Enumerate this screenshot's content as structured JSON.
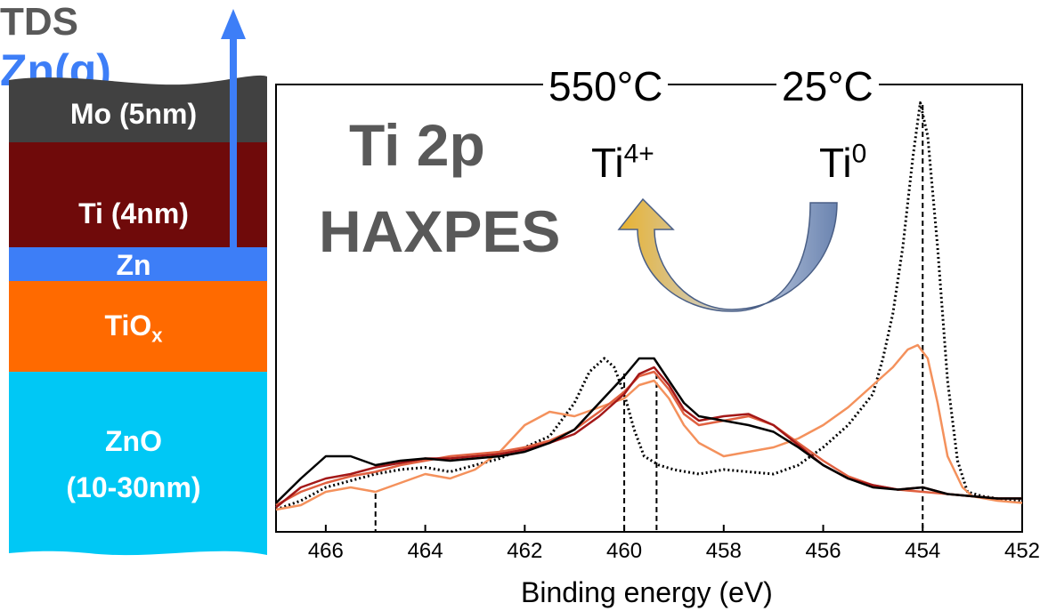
{
  "stack": {
    "tds_label": "TDS",
    "gas_label": "Zn(g)",
    "layers": [
      {
        "label": "Mo (5nm)",
        "color": "#414141"
      },
      {
        "label": "Ti (4nm)",
        "color": "#6f0a0a"
      },
      {
        "label": "Zn",
        "color": "#3d7ef7"
      },
      {
        "label": "TiO",
        "sub": "x",
        "color": "#ff6a00"
      },
      {
        "label": "ZnO",
        "label2": "(10-30nm)",
        "color": "#00c8f5"
      }
    ]
  },
  "annotations": {
    "title1": "Ti 2p",
    "title2": "HAXPES",
    "temp_left": "550°C",
    "temp_right": "25°C",
    "ion_left": "Ti",
    "ion_left_sup": "4+",
    "ion_right": "Ti",
    "ion_right_sup": "0"
  },
  "chart_data": {
    "type": "line",
    "title": "Ti 2p HAXPES",
    "xlabel": "Binding energy (eV)",
    "ylabel": "",
    "xlim": [
      467,
      452
    ],
    "x_reversed": true,
    "xticks": [
      466,
      464,
      462,
      460,
      458,
      456,
      454,
      452
    ],
    "reference_lines": [
      465,
      460,
      459.35,
      454
    ],
    "series": [
      {
        "color": "#000000",
        "style": "dotted",
        "x": [
          467,
          466.5,
          466,
          465.5,
          465,
          464.5,
          464,
          463.5,
          463,
          462.5,
          462,
          461.5,
          461,
          460.7,
          460.4,
          460.2,
          460.0,
          459.8,
          459.6,
          459.3,
          459,
          458.5,
          458,
          457.5,
          457,
          456.5,
          456,
          455.5,
          455,
          454.8,
          454.6,
          454.4,
          454.2,
          454.05,
          453.9,
          453.7,
          453.5,
          453.3,
          453.1,
          452.8,
          452.5,
          452
        ],
        "y": [
          0.02,
          0.06,
          0.12,
          0.15,
          0.18,
          0.2,
          0.21,
          0.19,
          0.22,
          0.25,
          0.3,
          0.35,
          0.5,
          0.64,
          0.7,
          0.66,
          0.54,
          0.38,
          0.26,
          0.22,
          0.2,
          0.18,
          0.2,
          0.19,
          0.18,
          0.22,
          0.3,
          0.4,
          0.54,
          0.7,
          0.9,
          1.2,
          1.6,
          1.85,
          1.7,
          1.2,
          0.6,
          0.24,
          0.1,
          0.08,
          0.07,
          0.06
        ]
      },
      {
        "color": "#f4915c",
        "style": "solid",
        "x": [
          467,
          466.5,
          466,
          465.5,
          465,
          464.5,
          464,
          463.5,
          463,
          462.5,
          462,
          461.5,
          461,
          460.5,
          460,
          459.7,
          459.4,
          459.1,
          458.8,
          458.5,
          458,
          457.5,
          457,
          456.5,
          456,
          455.5,
          455,
          454.6,
          454.3,
          454.1,
          453.9,
          453.7,
          453.5,
          453.2,
          453,
          452.5,
          452
        ],
        "y": [
          0.02,
          0.04,
          0.1,
          0.12,
          0.1,
          0.14,
          0.18,
          0.16,
          0.2,
          0.28,
          0.4,
          0.46,
          0.44,
          0.48,
          0.52,
          0.58,
          0.6,
          0.52,
          0.4,
          0.32,
          0.26,
          0.28,
          0.3,
          0.34,
          0.4,
          0.48,
          0.58,
          0.66,
          0.74,
          0.76,
          0.7,
          0.5,
          0.26,
          0.12,
          0.08,
          0.06,
          0.05
        ]
      },
      {
        "color": "#e06040",
        "style": "solid",
        "x": [
          467,
          466.5,
          466,
          465.5,
          465,
          464.5,
          464,
          463.5,
          463,
          462.5,
          462,
          461.5,
          461,
          460.5,
          460,
          459.7,
          459.4,
          459.1,
          458.8,
          458.5,
          458,
          457.5,
          457,
          456.5,
          456,
          455.5,
          455,
          454.5,
          454,
          453.5,
          453,
          452.5,
          452
        ],
        "y": [
          0.04,
          0.1,
          0.14,
          0.17,
          0.19,
          0.22,
          0.24,
          0.26,
          0.27,
          0.28,
          0.3,
          0.33,
          0.38,
          0.46,
          0.55,
          0.62,
          0.64,
          0.56,
          0.45,
          0.4,
          0.42,
          0.44,
          0.4,
          0.32,
          0.24,
          0.17,
          0.13,
          0.11,
          0.1,
          0.09,
          0.08,
          0.07,
          0.07
        ]
      },
      {
        "color": "#a31818",
        "style": "solid",
        "x": [
          467,
          466.5,
          466,
          465.5,
          465,
          464.5,
          464,
          463.5,
          463,
          462.5,
          462,
          461.5,
          461,
          460.5,
          460,
          459.7,
          459.4,
          459.1,
          458.8,
          458.5,
          458,
          457.5,
          457,
          456.5,
          456,
          455.5,
          455,
          454.5,
          454,
          453.5,
          453,
          452.5,
          452
        ],
        "y": [
          0.03,
          0.12,
          0.16,
          0.18,
          0.21,
          0.23,
          0.25,
          0.25,
          0.26,
          0.27,
          0.29,
          0.32,
          0.36,
          0.44,
          0.54,
          0.63,
          0.66,
          0.58,
          0.47,
          0.42,
          0.44,
          0.45,
          0.4,
          0.31,
          0.22,
          0.16,
          0.13,
          0.11,
          0.12,
          0.09,
          0.08,
          0.07,
          0.07
        ]
      },
      {
        "color": "#000000",
        "style": "solid",
        "x": [
          467,
          466.5,
          466,
          465.5,
          465,
          464.5,
          464,
          463.5,
          463,
          462.5,
          462,
          461.5,
          461,
          460.5,
          460,
          459.7,
          459.4,
          459.1,
          458.8,
          458.5,
          458,
          457.5,
          457,
          456.5,
          456,
          455.5,
          455,
          454.5,
          454,
          453.5,
          453,
          452.5,
          452
        ],
        "y": [
          0.05,
          0.16,
          0.26,
          0.26,
          0.22,
          0.24,
          0.25,
          0.24,
          0.25,
          0.26,
          0.28,
          0.32,
          0.38,
          0.5,
          0.62,
          0.7,
          0.7,
          0.6,
          0.5,
          0.44,
          0.42,
          0.4,
          0.37,
          0.3,
          0.22,
          0.16,
          0.12,
          0.11,
          0.12,
          0.09,
          0.08,
          0.07,
          0.07
        ]
      }
    ]
  }
}
